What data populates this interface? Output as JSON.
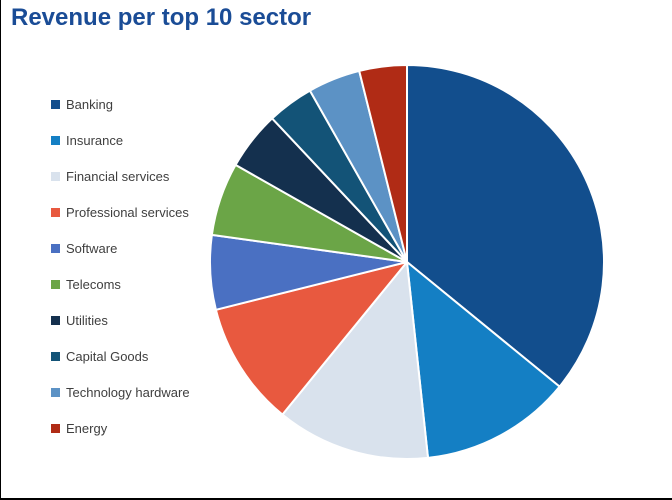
{
  "chart_data": {
    "type": "pie",
    "title": "Revenue per top 10 sector",
    "value_unit": "percent_of_total_revenue",
    "direction": "clockwise",
    "start_angle_deg": 0,
    "legend_position": "left",
    "categories": [
      "Banking",
      "Insurance",
      "Financial services",
      "Professional services",
      "Software",
      "Telecoms",
      "Utilities",
      "Capital Goods",
      "Technology hardware",
      "Energy"
    ],
    "values": [
      35.9,
      12.4,
      12.6,
      10.2,
      6.1,
      6.0,
      4.8,
      3.8,
      4.3,
      3.9
    ],
    "colors": [
      "#124e8d",
      "#147fc4",
      "#d9e2ed",
      "#e8593f",
      "#4a70c2",
      "#6ba547",
      "#14304e",
      "#135377",
      "#5c92c5",
      "#b02b15"
    ],
    "title_color": "#1a4c96",
    "separator_color": "#ffffff",
    "legend_text_color": "#3f3f3f"
  }
}
